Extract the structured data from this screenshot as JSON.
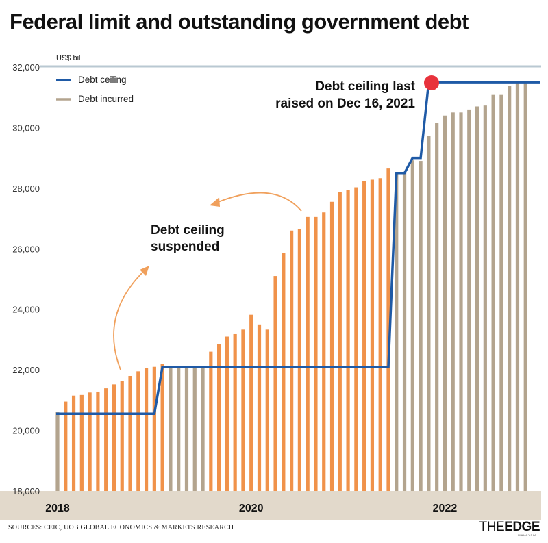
{
  "title": "Federal limit and outstanding government debt",
  "unit_label": "US$ bil",
  "legend": {
    "ceiling_label": "Debt ceiling",
    "incurred_label": "Debt incurred"
  },
  "annotations": {
    "raised_line1": "Debt ceiling last",
    "raised_line2": "raised on Dec 16, 2021",
    "suspended_line1": "Debt ceiling",
    "suspended_line2": "suspended"
  },
  "source": "SOURCES: CEIC, UOB GLOBAL ECONOMICS & MARKETS RESEARCH",
  "brand": {
    "part1": "THE",
    "part2": "EDGE",
    "part3": "MALAYSIA"
  },
  "colors": {
    "ceiling": "#1f5aa6",
    "suspended_bar": "#f0924a",
    "normal_bar": "#b3a48e",
    "axis_band": "#e2d9cb",
    "top_line": "#b9c8d2",
    "marker": "#e8323c",
    "arrow": "#f0a05c"
  },
  "chart_data": {
    "type": "bar",
    "title": "Federal limit and outstanding government debt",
    "ylabel": "US$ bil",
    "ylim": [
      18000,
      32000
    ],
    "yticks": [
      "18,000",
      "20,000",
      "22,000",
      "24,000",
      "26,000",
      "28,000",
      "30,000",
      "32,000"
    ],
    "year_labels": [
      "2018",
      "2020",
      "2022"
    ],
    "year_label_index": [
      0,
      24,
      48
    ],
    "series": [
      {
        "name": "Debt incurred",
        "type": "bar",
        "values": [
          20600,
          20950,
          21150,
          21170,
          21250,
          21280,
          21390,
          21520,
          21620,
          21800,
          21950,
          22050,
          22100,
          22200,
          22100,
          22100,
          22100,
          22050,
          22050,
          22600,
          22850,
          23100,
          23180,
          23330,
          23820,
          23500,
          23330,
          25100,
          25850,
          26600,
          26650,
          27050,
          27050,
          27200,
          27550,
          27880,
          27930,
          28030,
          28230,
          28280,
          28330,
          28650,
          28520,
          28500,
          28920,
          28900,
          29720,
          30160,
          30400,
          30500,
          30500,
          30600,
          30700,
          30730,
          31080,
          31080,
          31380,
          31500,
          31500
        ],
        "suspended_range": [
          1,
          13,
          19,
          41
        ]
      },
      {
        "name": "Debt ceiling",
        "type": "line",
        "values": [
          20550,
          20550,
          20550,
          20550,
          20550,
          20550,
          20550,
          20550,
          20550,
          20550,
          20550,
          20550,
          20550,
          22100,
          22100,
          22100,
          22100,
          22100,
          22100,
          22100,
          22100,
          22100,
          22100,
          22100,
          22100,
          22100,
          22100,
          22100,
          22100,
          22100,
          22100,
          22100,
          22100,
          22100,
          22100,
          22100,
          22100,
          22100,
          22100,
          22100,
          22100,
          22100,
          28500,
          28500,
          29000,
          29000,
          31500,
          31500,
          31500,
          31500,
          31500,
          31500,
          31500,
          31500,
          31500,
          31500,
          31500,
          31500,
          31500
        ]
      }
    ]
  }
}
